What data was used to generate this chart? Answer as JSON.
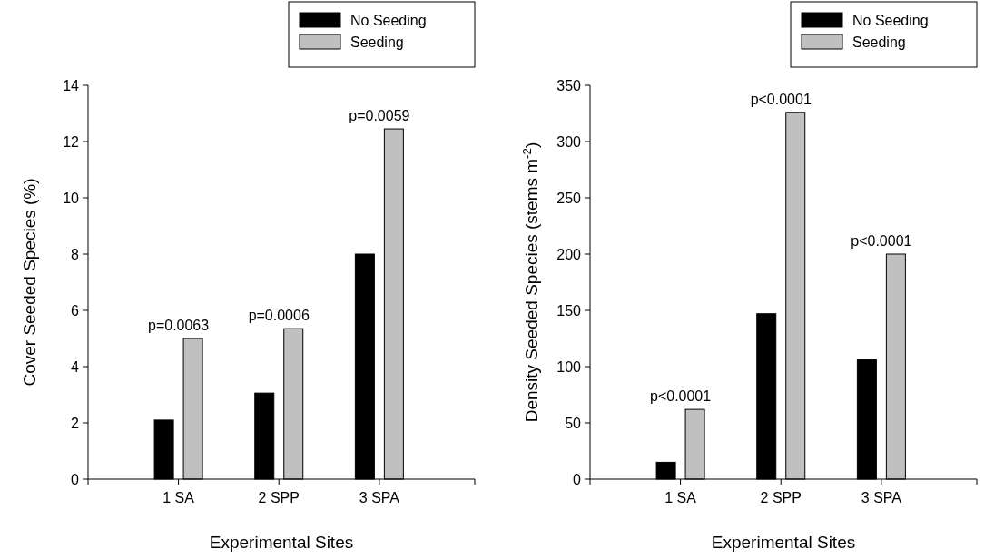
{
  "chart_data": [
    {
      "type": "bar",
      "xlabel": "Experimental Sites",
      "ylabel": "Cover Seeded Species (%)",
      "categories": [
        "1 SA",
        "2 SPP",
        "3 SPA"
      ],
      "series": [
        {
          "name": "No Seeding",
          "color": "#000000",
          "values": [
            2.1,
            3.06,
            8.0
          ]
        },
        {
          "name": "Seeding",
          "color": "#c0c0c0",
          "values": [
            5.0,
            5.35,
            12.45
          ]
        }
      ],
      "ylim": [
        0,
        14
      ],
      "yticks": [
        0,
        2,
        4,
        6,
        8,
        10,
        12,
        14
      ],
      "legend": "top right",
      "grid": false,
      "annotations": [
        "p=0.0063",
        "p=0.0006",
        "p=0.0059"
      ]
    },
    {
      "type": "bar",
      "xlabel": "Experimental Sites",
      "ylabel": "Density Seeded Species (stems m$^{-2}$)",
      "categories": [
        "1 SA",
        "2 SPP",
        "3 SPA"
      ],
      "series": [
        {
          "name": "No Seeding",
          "color": "#000000",
          "values": [
            15,
            147,
            106
          ]
        },
        {
          "name": "Seeding",
          "color": "#c0c0c0",
          "values": [
            62,
            326,
            200
          ]
        }
      ],
      "ylim": [
        0,
        350
      ],
      "yticks": [
        0,
        50,
        100,
        150,
        200,
        250,
        300,
        350
      ],
      "legend": "top right",
      "grid": false,
      "annotations": [
        "p<0.0001",
        "p<0.0001",
        "p<0.0001"
      ]
    }
  ]
}
